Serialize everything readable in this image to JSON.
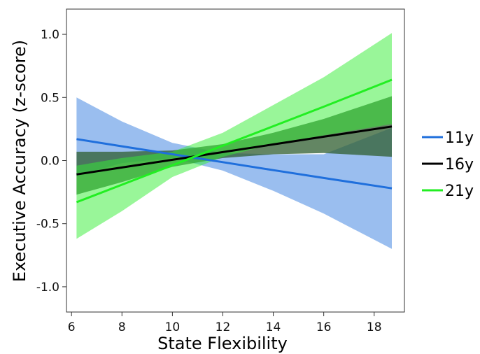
{
  "chart_data": {
    "type": "line",
    "xlabel": "State Flexibility",
    "ylabel": "Executive Accuracy (z-score)",
    "xlim": [
      5.8,
      19.2
    ],
    "ylim": [
      -1.2,
      1.2
    ],
    "xticks": [
      6,
      8,
      10,
      12,
      14,
      16,
      18
    ],
    "yticks": [
      -1.0,
      -0.5,
      0.0,
      0.5,
      1.0
    ],
    "ytick_labels": [
      "-1.0",
      "-0.5",
      "0.0",
      "0.5",
      "1.0"
    ],
    "grid": false,
    "legend_placement": "right",
    "series": [
      {
        "name": "11y",
        "color": "#1f6fdc",
        "band_color": "#6fa3e8",
        "x": [
          6.2,
          8,
          10,
          12,
          14,
          16,
          18.7
        ],
        "y": [
          0.17,
          0.113,
          0.05,
          -0.013,
          -0.076,
          -0.138,
          -0.22
        ],
        "lower": [
          -0.12,
          -0.02,
          0.02,
          -0.08,
          -0.24,
          -0.42,
          -0.7
        ],
        "upper": [
          0.5,
          0.31,
          0.14,
          0.06,
          0.05,
          0.05,
          0.26
        ]
      },
      {
        "name": "16y",
        "color": "#000000",
        "band_color": "#2f5e2f",
        "x": [
          6.2,
          8,
          10,
          12,
          14,
          16,
          18.7
        ],
        "y": [
          -0.11,
          -0.055,
          0.006,
          0.067,
          0.128,
          0.189,
          0.27
        ],
        "lower": [
          -0.27,
          -0.17,
          -0.05,
          0.02,
          0.05,
          0.06,
          0.03
        ],
        "upper": [
          0.07,
          0.07,
          0.08,
          0.13,
          0.22,
          0.33,
          0.51
        ]
      },
      {
        "name": "21y",
        "color": "#22ee22",
        "band_color": "#33ee33",
        "x": [
          6.2,
          8,
          10,
          12,
          14,
          16,
          18.7
        ],
        "y": [
          -0.33,
          -0.191,
          -0.037,
          0.118,
          0.272,
          0.427,
          0.64
        ],
        "lower": [
          -0.62,
          -0.4,
          -0.13,
          0.03,
          0.13,
          0.2,
          0.29
        ],
        "upper": [
          -0.04,
          0.02,
          0.07,
          0.22,
          0.44,
          0.66,
          1.01
        ]
      }
    ]
  }
}
